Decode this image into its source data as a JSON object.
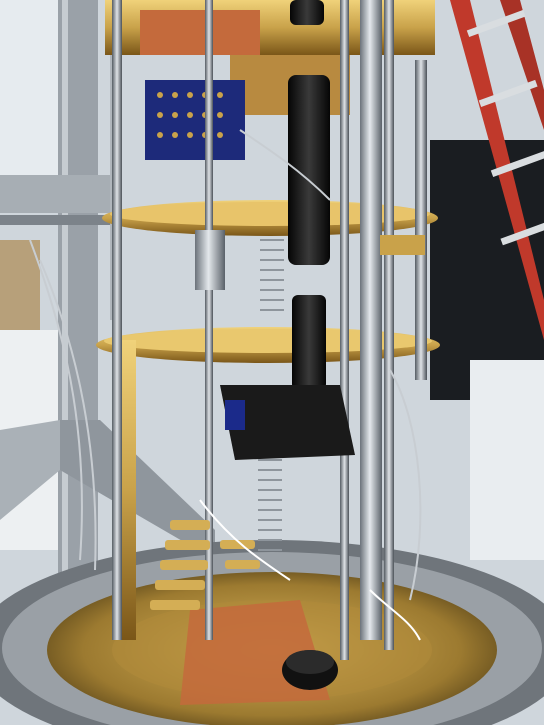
{
  "image": {
    "kind": "photograph",
    "subject": "cryostat-assembly",
    "colors": {
      "gold": "#c9a24a",
      "gold_dark": "#8a6520",
      "copper": "#c46a3c",
      "steel": "#b8bec5",
      "steel_dark": "#5d646c",
      "black": "#141414",
      "red_frame": "#c0392b",
      "blue_board": "#1d2a7a",
      "floor_ring": "#8e949a",
      "bg_wall": "#cfd6dc"
    }
  }
}
